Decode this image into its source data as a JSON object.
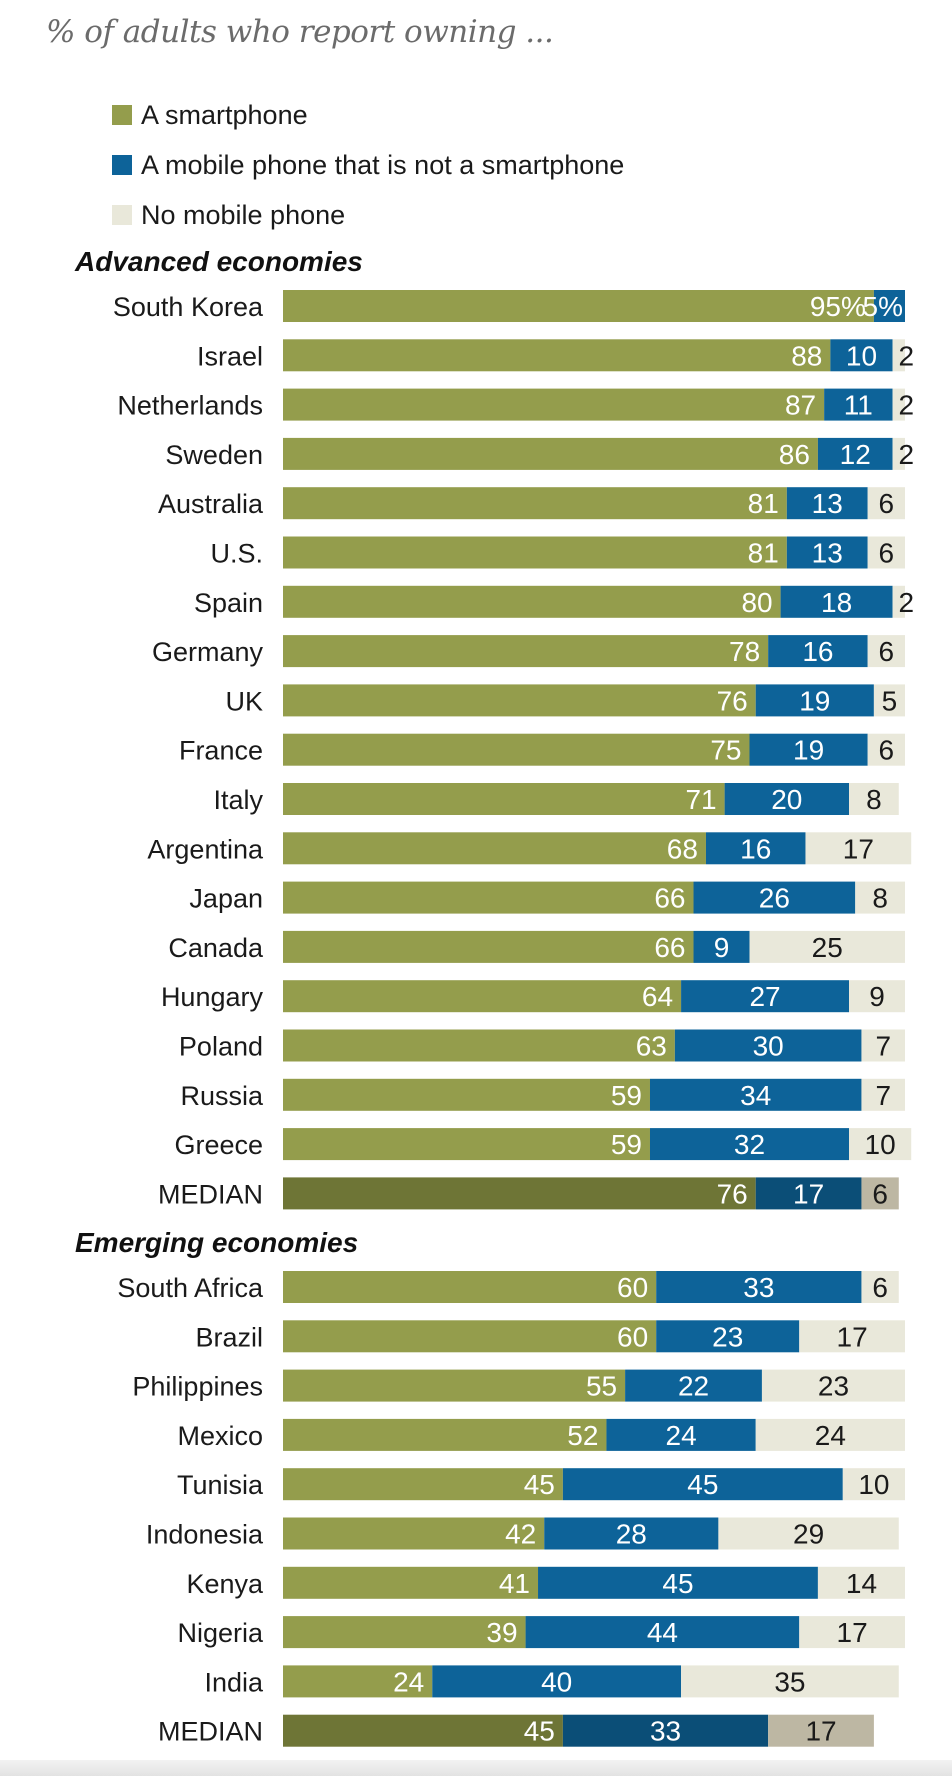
{
  "colors": {
    "smartphone": "#949d4c",
    "other_mobile": "#0d6399",
    "none": "#e9e8da",
    "median_smartphone": "#6e7536",
    "median_other_mobile": "#0b4e77",
    "median_none": "#bdb7a3"
  },
  "chart_data": {
    "type": "bar",
    "orientation": "horizontal",
    "stacked": true,
    "title": "% of adults who report owning ...",
    "xlabel": "",
    "ylabel": "",
    "xlim": [
      0,
      100
    ],
    "grid": false,
    "legend_position": "top-left",
    "value_suffix_first_row": "%",
    "legend": [
      {
        "key": "smartphone",
        "label": "A smartphone"
      },
      {
        "key": "other_mobile",
        "label": "A mobile phone that is not a smartphone"
      },
      {
        "key": "none",
        "label": "No mobile phone"
      }
    ],
    "groups": [
      {
        "title": "Advanced economies",
        "rows": [
          {
            "label": "South Korea",
            "values": [
              95,
              5,
              0
            ]
          },
          {
            "label": "Israel",
            "values": [
              88,
              10,
              2
            ]
          },
          {
            "label": "Netherlands",
            "values": [
              87,
              11,
              2
            ]
          },
          {
            "label": "Sweden",
            "values": [
              86,
              12,
              2
            ]
          },
          {
            "label": "Australia",
            "values": [
              81,
              13,
              6
            ]
          },
          {
            "label": "U.S.",
            "values": [
              81,
              13,
              6
            ]
          },
          {
            "label": "Spain",
            "values": [
              80,
              18,
              2
            ]
          },
          {
            "label": "Germany",
            "values": [
              78,
              16,
              6
            ]
          },
          {
            "label": "UK",
            "values": [
              76,
              19,
              5
            ]
          },
          {
            "label": "France",
            "values": [
              75,
              19,
              6
            ]
          },
          {
            "label": "Italy",
            "values": [
              71,
              20,
              8
            ]
          },
          {
            "label": "Argentina",
            "values": [
              68,
              16,
              17
            ]
          },
          {
            "label": "Japan",
            "values": [
              66,
              26,
              8
            ]
          },
          {
            "label": "Canada",
            "values": [
              66,
              9,
              25
            ]
          },
          {
            "label": "Hungary",
            "values": [
              64,
              27,
              9
            ]
          },
          {
            "label": "Poland",
            "values": [
              63,
              30,
              7
            ]
          },
          {
            "label": "Russia",
            "values": [
              59,
              34,
              7
            ]
          },
          {
            "label": "Greece",
            "values": [
              59,
              32,
              10
            ]
          },
          {
            "label": "MEDIAN",
            "values": [
              76,
              17,
              6
            ],
            "median": true
          }
        ]
      },
      {
        "title": "Emerging economies",
        "rows": [
          {
            "label": "South Africa",
            "values": [
              60,
              33,
              6
            ]
          },
          {
            "label": "Brazil",
            "values": [
              60,
              23,
              17
            ]
          },
          {
            "label": "Philippines",
            "values": [
              55,
              22,
              23
            ]
          },
          {
            "label": "Mexico",
            "values": [
              52,
              24,
              24
            ]
          },
          {
            "label": "Tunisia",
            "values": [
              45,
              45,
              10
            ]
          },
          {
            "label": "Indonesia",
            "values": [
              42,
              28,
              29
            ]
          },
          {
            "label": "Kenya",
            "values": [
              41,
              45,
              14
            ]
          },
          {
            "label": "Nigeria",
            "values": [
              39,
              44,
              17
            ]
          },
          {
            "label": "India",
            "values": [
              24,
              40,
              35
            ]
          },
          {
            "label": "MEDIAN",
            "values": [
              45,
              33,
              17
            ],
            "median": true
          }
        ]
      }
    ]
  }
}
